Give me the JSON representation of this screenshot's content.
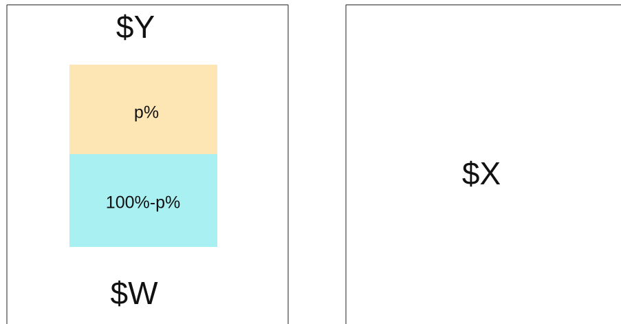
{
  "left_panel": {
    "top_label": "$Y",
    "bar": {
      "top_segment": "p%",
      "bottom_segment": "100%-p%"
    },
    "bottom_label": "$W"
  },
  "right_panel": {
    "label": "$X"
  }
}
